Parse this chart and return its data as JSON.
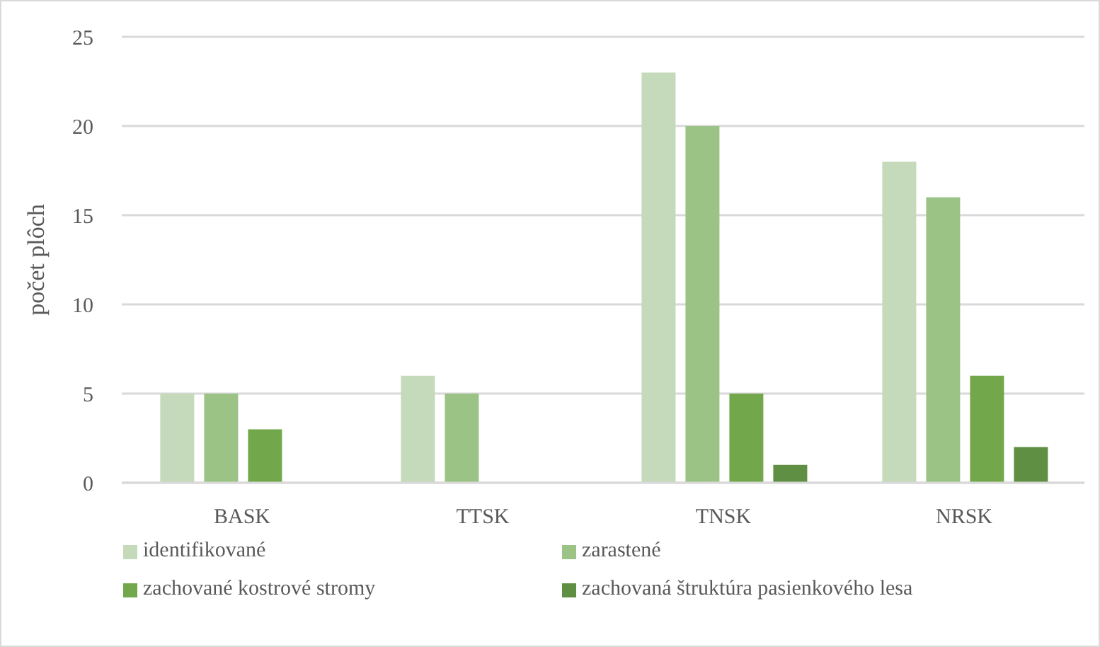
{
  "chart_data": {
    "type": "bar",
    "ylabel": "počet plôch",
    "categories": [
      "BASK",
      "TTSK",
      "TNSK",
      "NRSK"
    ],
    "series": [
      {
        "name": "identifikované",
        "color": "#c5d9bb",
        "values": [
          5,
          6,
          23,
          18
        ]
      },
      {
        "name": "zarastené",
        "color": "#9bc385",
        "values": [
          5,
          5,
          20,
          16
        ]
      },
      {
        "name": "zachované kostrové stromy",
        "color": "#72a84b",
        "values": [
          3,
          null,
          5,
          6
        ]
      },
      {
        "name": "zachovaná štruktúra pasienkového lesa",
        "color": "#5f8f42",
        "values": [
          null,
          null,
          1,
          2
        ]
      }
    ],
    "ylim": [
      0,
      25
    ],
    "yticks": [
      0,
      5,
      10,
      15,
      20,
      25
    ],
    "grid": "y",
    "legend": "bottom"
  }
}
